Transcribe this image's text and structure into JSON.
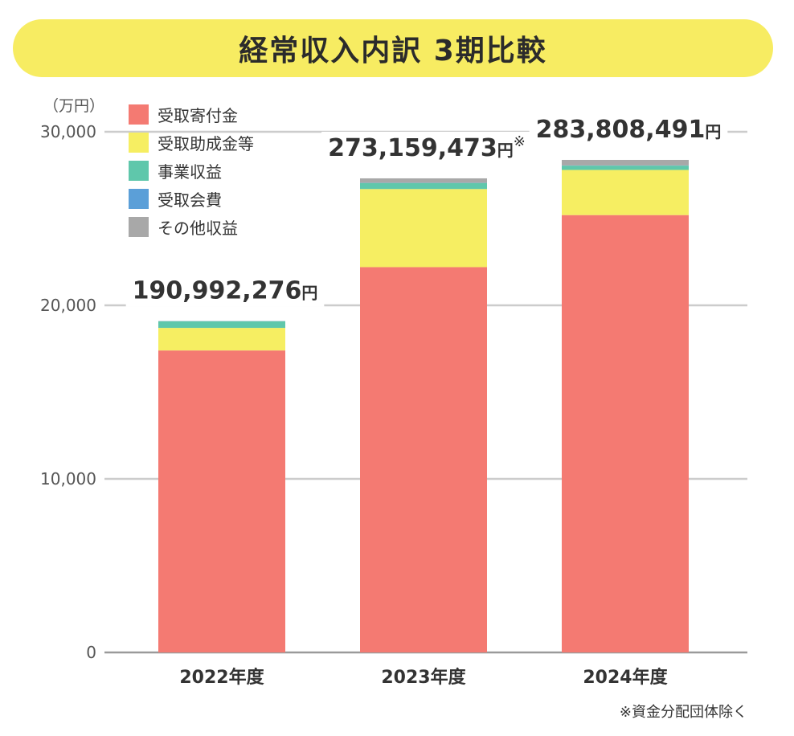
{
  "title": "経常収入内訳 3期比較",
  "footnote": "※資金分配団体除く",
  "chart_data": {
    "type": "bar",
    "stacked": true,
    "unit": "（万円）",
    "ylim": [
      0,
      30000
    ],
    "yticks": [
      "0",
      "10,000",
      "20,000",
      "30,000"
    ],
    "ytick_values": [
      0,
      10000,
      20000,
      30000
    ],
    "grid": true,
    "legend_position": "top-left",
    "categories": [
      "2022年度",
      "2023年度",
      "2024年度"
    ],
    "series": [
      {
        "name": "受取寄付金",
        "color": "#f47a72",
        "values": [
          17400,
          22200,
          25200
        ]
      },
      {
        "name": "受取助成金等",
        "color": "#f6ee62",
        "values": [
          1300,
          4500,
          2600
        ]
      },
      {
        "name": "事業収益",
        "color": "#5fc7ab",
        "values": [
          380,
          350,
          250
        ]
      },
      {
        "name": "受取会費",
        "color": "#5b9fd8",
        "values": [
          10,
          10,
          10
        ]
      },
      {
        "name": "その他収益",
        "color": "#a8a8a8",
        "values": [
          9,
          256,
          320
        ]
      }
    ],
    "totals": [
      {
        "value": "190,992,276",
        "unit": "円",
        "mark": ""
      },
      {
        "value": "273,159,473",
        "unit": "円",
        "mark": "※"
      },
      {
        "value": "283,808,491",
        "unit": "円",
        "mark": ""
      }
    ]
  }
}
